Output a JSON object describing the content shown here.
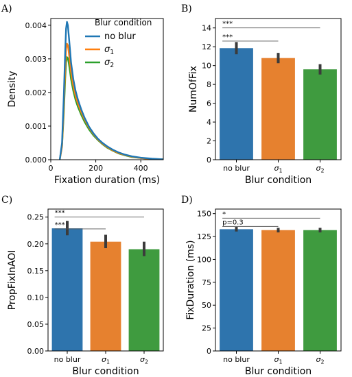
{
  "chart_data": [
    {
      "id": "A",
      "panel_label": "A)",
      "type": "line",
      "xlabel": "Fixation duration (ms)",
      "ylabel": "Density",
      "xlim": [
        0,
        500
      ],
      "ylim": [
        0,
        0.0042
      ],
      "xticks": [
        0,
        200,
        400
      ],
      "yticks": [
        0.0,
        0.001,
        0.002,
        0.003,
        0.004
      ],
      "ytick_labels": [
        "0.000",
        "0.001",
        "0.002",
        "0.003",
        "0.004"
      ],
      "legend": {
        "title": "Blur condition",
        "placement": "top-right"
      },
      "series": [
        {
          "name": "no blur",
          "color": "#1f77b4",
          "x": [
            40,
            50,
            58,
            64,
            68,
            72,
            76,
            80,
            85,
            90,
            100,
            110,
            120,
            135,
            150,
            170,
            190,
            210,
            230,
            250,
            275,
            300,
            330,
            360,
            400,
            450,
            500
          ],
          "y": [
            0,
            0.0005,
            0.0019,
            0.0032,
            0.0039,
            0.0041,
            0.004,
            0.0037,
            0.0033,
            0.0029,
            0.0024,
            0.00205,
            0.0018,
            0.0015,
            0.00125,
            0.00098,
            0.00078,
            0.00062,
            0.0005,
            0.0004,
            0.0003,
            0.00022,
            0.00015,
            0.0001,
            6e-05,
            3e-05,
            1e-05
          ]
        },
        {
          "name": "σ1",
          "color": "#ff7f0e",
          "x": [
            40,
            50,
            58,
            64,
            68,
            72,
            76,
            80,
            85,
            90,
            100,
            110,
            120,
            135,
            150,
            170,
            190,
            210,
            230,
            250,
            275,
            300,
            330,
            360,
            400,
            450,
            500
          ],
          "y": [
            0,
            0.0004,
            0.0016,
            0.0027,
            0.0033,
            0.00345,
            0.0034,
            0.0032,
            0.0029,
            0.00262,
            0.0022,
            0.0019,
            0.00168,
            0.00142,
            0.0012,
            0.00095,
            0.00076,
            0.0006,
            0.00048,
            0.00038,
            0.00028,
            0.0002,
            0.00014,
            9e-05,
            5e-05,
            2e-05,
            1e-05
          ]
        },
        {
          "name": "σ2",
          "color": "#2ca02c",
          "x": [
            40,
            50,
            58,
            64,
            68,
            72,
            76,
            80,
            85,
            90,
            100,
            110,
            120,
            135,
            150,
            170,
            190,
            210,
            230,
            250,
            275,
            300,
            330,
            360,
            400,
            450,
            500
          ],
          "y": [
            0,
            0.0004,
            0.0014,
            0.0024,
            0.0029,
            0.00305,
            0.00302,
            0.00288,
            0.00265,
            0.0024,
            0.00205,
            0.00178,
            0.00158,
            0.00134,
            0.00113,
            0.0009,
            0.00072,
            0.00058,
            0.00046,
            0.00036,
            0.00027,
            0.00019,
            0.00013,
            8e-05,
            5e-05,
            2e-05,
            1e-05
          ]
        }
      ]
    },
    {
      "id": "B",
      "panel_label": "B)",
      "type": "bar",
      "xlabel": "Blur condition",
      "ylabel": "NumOfFix",
      "ylim": [
        0,
        15
      ],
      "yticks": [
        0,
        2,
        4,
        6,
        8,
        10,
        12,
        14
      ],
      "categories": [
        "no blur",
        "σ1",
        "σ2"
      ],
      "values": [
        11.85,
        10.8,
        9.6
      ],
      "err_low": [
        11.2,
        10.25,
        9.05
      ],
      "err_high": [
        12.5,
        11.35,
        10.15
      ],
      "colors": [
        "#2e74ad",
        "#e6812f",
        "#3f9b3f"
      ],
      "annotations": [
        {
          "text": "***",
          "from": 0,
          "to": 2,
          "y": 14.0
        },
        {
          "text": "***",
          "from": 0,
          "to": 1,
          "y": 12.6
        }
      ]
    },
    {
      "id": "C",
      "panel_label": "C)",
      "type": "bar",
      "xlabel": "Blur condition",
      "ylabel": "PropFixInAOI",
      "ylim": [
        0,
        0.265
      ],
      "yticks": [
        0.0,
        0.05,
        0.1,
        0.15,
        0.2,
        0.25
      ],
      "ytick_labels": [
        "0.00",
        "0.05",
        "0.10",
        "0.15",
        "0.20",
        "0.25"
      ],
      "categories": [
        "no blur",
        "σ1",
        "σ2"
      ],
      "values": [
        0.229,
        0.204,
        0.19
      ],
      "err_low": [
        0.216,
        0.192,
        0.177
      ],
      "err_high": [
        0.243,
        0.217,
        0.204
      ],
      "colors": [
        "#2e74ad",
        "#e6812f",
        "#3f9b3f"
      ],
      "annotations": [
        {
          "text": "***",
          "from": 0,
          "to": 2,
          "y": 0.25
        },
        {
          "text": "***",
          "from": 0,
          "to": 1,
          "y": 0.228
        }
      ]
    },
    {
      "id": "D",
      "panel_label": "D)",
      "type": "bar",
      "xlabel": "Blur condition",
      "ylabel": "FixDuration (ms)",
      "ylim": [
        0,
        155
      ],
      "yticks": [
        0,
        25,
        50,
        75,
        100,
        125,
        150
      ],
      "categories": [
        "no blur",
        "σ1",
        "σ2"
      ],
      "values": [
        133,
        132,
        132
      ],
      "err_low": [
        130.5,
        129.5,
        129.5
      ],
      "err_high": [
        135.5,
        134.5,
        134.5
      ],
      "colors": [
        "#2e74ad",
        "#e6812f",
        "#3f9b3f"
      ],
      "annotations": [
        {
          "text": "*",
          "from": 0,
          "to": 2,
          "y": 145
        },
        {
          "text": "p=0.3",
          "from": 0,
          "to": 1,
          "y": 136
        }
      ]
    }
  ]
}
